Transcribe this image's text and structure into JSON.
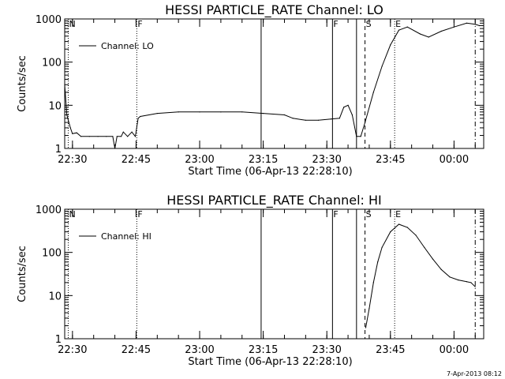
{
  "chart_data": [
    {
      "type": "line",
      "title": "HESSI PARTICLE_RATE Channel: LO",
      "xlabel": "Start Time (06-Apr-13 22:28:10)",
      "ylabel": "Counts/sec",
      "xlim": [
        "22:28:10",
        "00:07:00"
      ],
      "ylim": [
        1,
        1000
      ],
      "yscale": "log",
      "x_tick_labels": [
        "22:30",
        "22:45",
        "23:00",
        "23:15",
        "23:30",
        "23:45",
        "00:00"
      ],
      "y_tick_labels": [
        "1",
        "10",
        "100",
        "1000"
      ],
      "legend": {
        "entries": [
          "Channel: LO"
        ],
        "position": "top-left"
      },
      "grid": false,
      "series": [
        {
          "name": "Channel: LO",
          "points": [
            [
              "22:28:10",
              30
            ],
            [
              "22:28:40",
              6
            ],
            [
              "22:29:30",
              3
            ],
            [
              "22:30:00",
              2.2
            ],
            [
              "22:31:00",
              2.3
            ],
            [
              "22:32:00",
              1.9
            ],
            [
              "22:34:00",
              1.9
            ],
            [
              "22:36:00",
              1.9
            ],
            [
              "22:38:00",
              1.9
            ],
            [
              "22:39:30",
              1.9
            ],
            [
              "22:40:00",
              1.0
            ],
            [
              "22:40:30",
              1.9
            ],
            [
              "22:41:30",
              1.9
            ],
            [
              "22:42:00",
              2.4
            ],
            [
              "22:43:00",
              1.9
            ],
            [
              "22:44:00",
              2.4
            ],
            [
              "22:44:50",
              1.9
            ],
            [
              "22:45:30",
              5
            ],
            [
              "22:46:00",
              5.5
            ],
            [
              "22:50:00",
              6.5
            ],
            [
              "22:55:00",
              7
            ],
            [
              "23:00:00",
              7
            ],
            [
              "23:05:00",
              7
            ],
            [
              "23:10:00",
              7
            ],
            [
              "23:15:00",
              6.5
            ],
            [
              "23:20:00",
              6
            ],
            [
              "23:22:00",
              5
            ],
            [
              "23:25:00",
              4.5
            ],
            [
              "23:28:00",
              4.5
            ],
            [
              "23:31:00",
              4.8
            ],
            [
              "23:33:00",
              5
            ],
            [
              "23:34:00",
              9
            ],
            [
              "23:35:00",
              10
            ],
            [
              "23:36:00",
              6
            ],
            [
              "23:37:00",
              1.9
            ],
            [
              "23:38:00",
              1.9
            ],
            [
              "23:39:00",
              4
            ],
            [
              "23:41:00",
              20
            ],
            [
              "23:43:00",
              80
            ],
            [
              "23:45:00",
              250
            ],
            [
              "23:47:00",
              550
            ],
            [
              "23:49:00",
              650
            ],
            [
              "23:52:00",
              450
            ],
            [
              "23:54:00",
              380
            ],
            [
              "23:57:00",
              520
            ],
            [
              "00:00:00",
              650
            ],
            [
              "00:03:00",
              800
            ],
            [
              "00:05:00",
              750
            ],
            [
              "00:06:00",
              700
            ]
          ]
        }
      ],
      "markers": [
        {
          "label": "N",
          "time": "22:29:00",
          "style": "dotted"
        },
        {
          "label": "F",
          "time": "22:45:10",
          "style": "dotted"
        },
        {
          "label": "",
          "time": "23:14:30",
          "style": "solid"
        },
        {
          "label": "F",
          "time": "23:31:20",
          "style": "solid"
        },
        {
          "label": "",
          "time": "23:37:00",
          "style": "solid"
        },
        {
          "label": "S",
          "time": "23:39:00",
          "style": "dashed"
        },
        {
          "label": "E",
          "time": "23:46:00",
          "style": "dotted"
        },
        {
          "label": "",
          "time": "00:05:00",
          "style": "dashdot"
        }
      ]
    },
    {
      "type": "line",
      "title": "HESSI PARTICLE_RATE Channel: HI",
      "xlabel": "Start Time (06-Apr-13 22:28:10)",
      "ylabel": "Counts/sec",
      "xlim": [
        "22:28:10",
        "00:07:00"
      ],
      "ylim": [
        1,
        1000
      ],
      "yscale": "log",
      "x_tick_labels": [
        "22:30",
        "22:45",
        "23:00",
        "23:15",
        "23:30",
        "23:45",
        "00:00"
      ],
      "y_tick_labels": [
        "1",
        "10",
        "100",
        "1000"
      ],
      "legend": {
        "entries": [
          "Channel: HI"
        ],
        "position": "top-left"
      },
      "grid": false,
      "series": [
        {
          "name": "Channel: HI",
          "points": [
            [
              "23:39:10",
              1.8
            ],
            [
              "23:40:00",
              5
            ],
            [
              "23:41:00",
              20
            ],
            [
              "23:42:00",
              60
            ],
            [
              "23:43:00",
              130
            ],
            [
              "23:45:00",
              300
            ],
            [
              "23:47:00",
              450
            ],
            [
              "23:49:00",
              380
            ],
            [
              "23:51:00",
              250
            ],
            [
              "23:53:00",
              130
            ],
            [
              "23:55:00",
              70
            ],
            [
              "23:57:00",
              40
            ],
            [
              "23:59:00",
              27
            ],
            [
              "00:01:00",
              23
            ],
            [
              "00:03:00",
              21
            ],
            [
              "00:04:00",
              20
            ],
            [
              "00:05:00",
              16
            ]
          ]
        }
      ],
      "markers": [
        {
          "label": "N",
          "time": "22:29:00",
          "style": "dotted"
        },
        {
          "label": "F",
          "time": "22:45:10",
          "style": "dotted"
        },
        {
          "label": "",
          "time": "23:14:30",
          "style": "solid"
        },
        {
          "label": "F",
          "time": "23:31:20",
          "style": "solid"
        },
        {
          "label": "",
          "time": "23:37:00",
          "style": "solid"
        },
        {
          "label": "S",
          "time": "23:39:00",
          "style": "dashed"
        },
        {
          "label": "E",
          "time": "23:46:00",
          "style": "dotted"
        },
        {
          "label": "",
          "time": "00:05:00",
          "style": "dashdot"
        }
      ]
    }
  ],
  "footer": {
    "timestamp": "7-Apr-2013 08:12"
  }
}
